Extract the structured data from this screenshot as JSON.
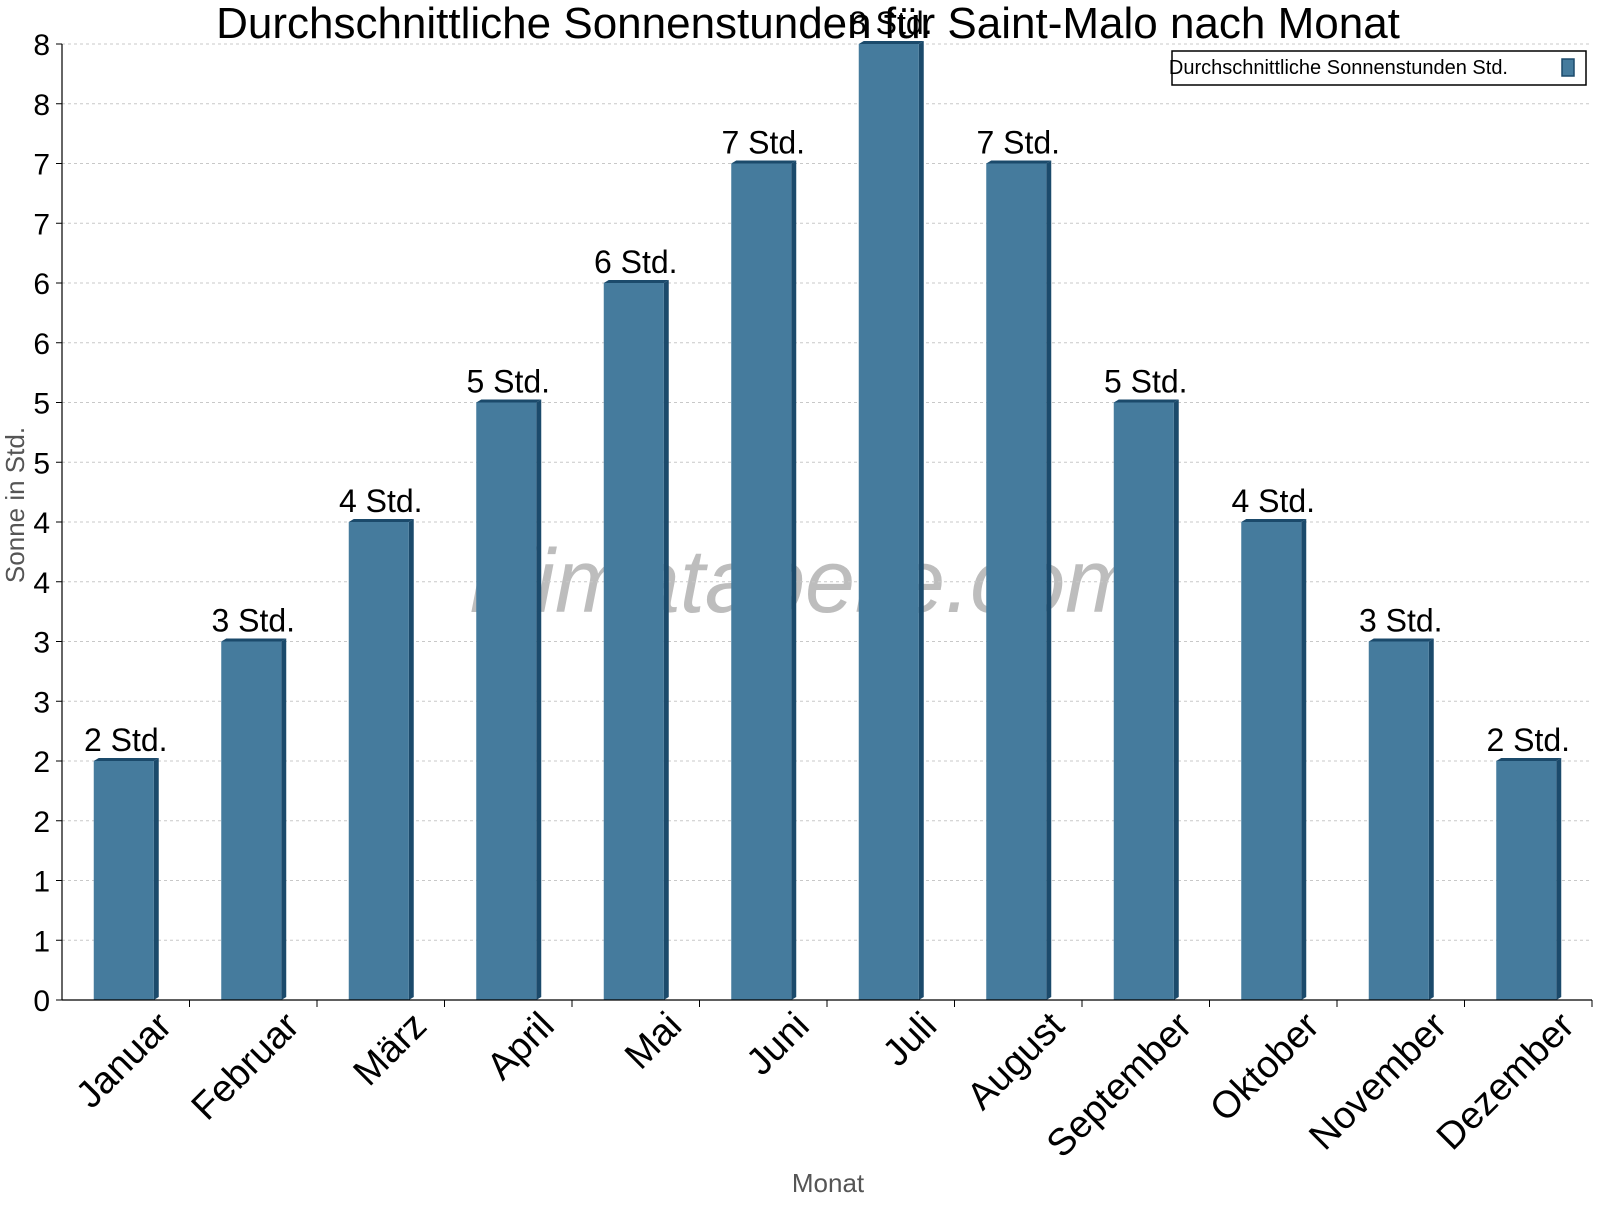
{
  "watermark": "klimatabelle.com",
  "chart_data": {
    "type": "bar",
    "title": "Durchschnittliche Sonnenstunden für Saint-Malo nach Monat",
    "xlabel": "Monat",
    "ylabel": "Sonne in Std.",
    "categories": [
      "Januar",
      "Februar",
      "März",
      "April",
      "Mai",
      "Juni",
      "Juli",
      "August",
      "September",
      "Oktober",
      "November",
      "Dezember"
    ],
    "series": [
      {
        "name": "Durchschnittliche Sonnenstunden Std.",
        "values": [
          2.0,
          3.0,
          4.0,
          5.0,
          6.0,
          7.0,
          8.0,
          7.0,
          5.0,
          4.0,
          3.0,
          2.0
        ],
        "labels": [
          "2 Std.",
          "3 Std.",
          "4 Std.",
          "5 Std.",
          "6 Std.",
          "7 Std.",
          "8 Std.",
          "7 Std.",
          "5 Std.",
          "4 Std.",
          "3 Std.",
          "2 Std."
        ]
      }
    ],
    "ylim": [
      0,
      8
    ],
    "yticks": [
      0,
      0.5,
      1,
      1.5,
      2,
      2.5,
      3,
      3.5,
      4,
      4.5,
      5,
      5.5,
      6,
      6.5,
      7,
      7.5,
      8
    ],
    "ytick_labels": [
      "0",
      "1",
      "1",
      "2",
      "2",
      "3",
      "3",
      "4",
      "4",
      "5",
      "5",
      "6",
      "6",
      "7",
      "7",
      "8",
      "8"
    ],
    "grid": true,
    "legend": "top-right",
    "colors": {
      "bar": "#457b9d",
      "bar_side": "#1b4a6b",
      "bar_top": "#1b4a6b",
      "grid": "#c8c8c8"
    }
  }
}
